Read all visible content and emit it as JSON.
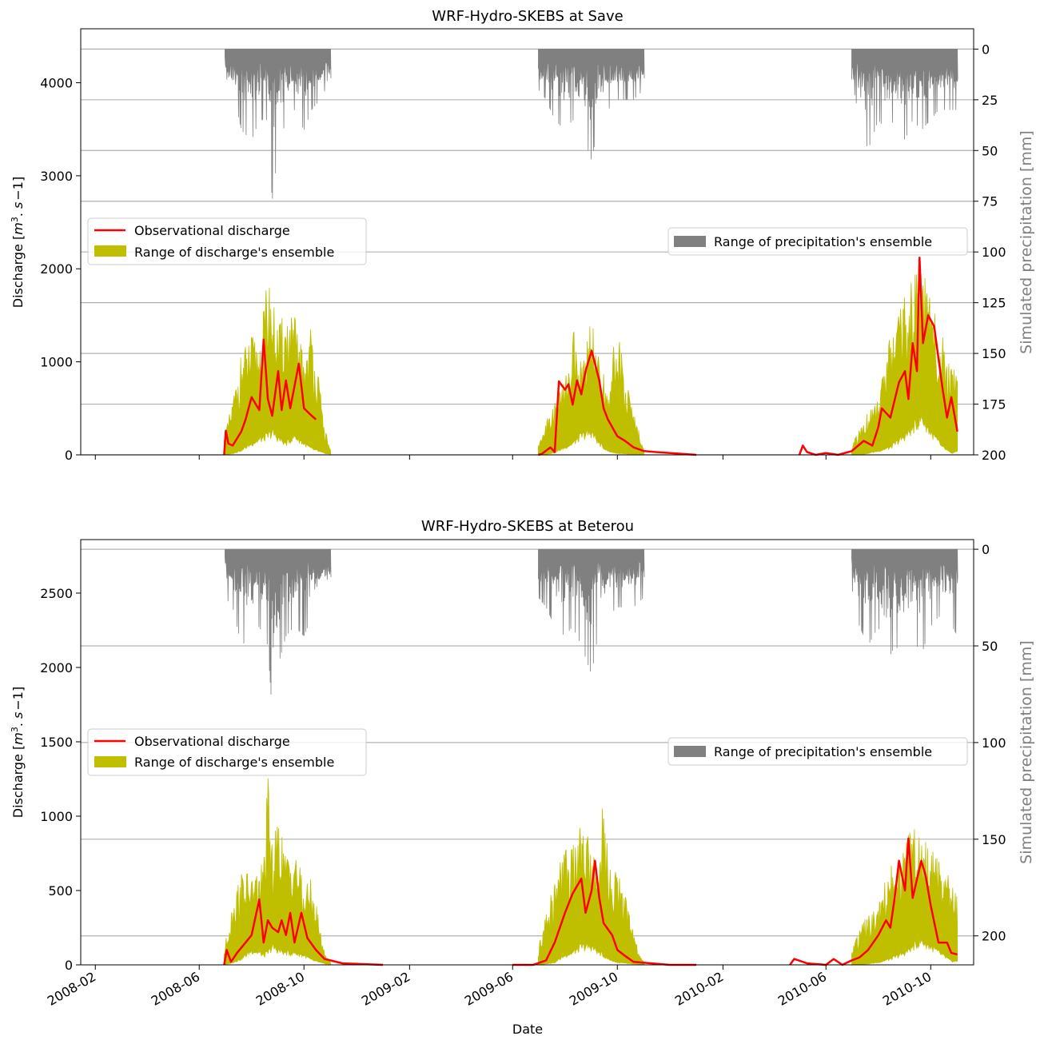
{
  "chart_data": [
    {
      "type": "line",
      "title": "WRF-Hydro-SKEBS at Save",
      "xlabel": "",
      "ylabel": "Discharge [$m^3.s^-1$]",
      "ylabel_parts": {
        "pre": "Discharge [",
        "m": "m",
        "sup": "3",
        "mid": ". ",
        "s": "s",
        "post": "−1]"
      },
      "y2label": "Simulated precipitation [mm]",
      "ylim": [
        0,
        4580
      ],
      "yticks": [
        "0",
        "1000",
        "2000",
        "3000",
        "4000"
      ],
      "y2lim": [
        200,
        -10
      ],
      "y2ticks": [
        "0",
        "25",
        "50",
        "75",
        "100",
        "125",
        "150",
        "175",
        "200"
      ],
      "xlim": [
        "2008-01-15",
        "2010-11-20"
      ],
      "xticks": [],
      "grid": "right-axis horizontal",
      "legend_left": [
        "Observational discharge",
        "Range of discharge's ensemble"
      ],
      "legend_right": [
        "Range of precipitation's ensemble"
      ],
      "series": [
        {
          "name": "Observational discharge",
          "color": "#ff0000",
          "x": [
            "2008-03-01",
            "2008-06-30",
            "2008-07-02",
            "2008-07-05",
            "2008-07-10",
            "2008-07-20",
            "2008-07-25",
            "2008-08-01",
            "2008-08-10",
            "2008-08-15",
            "2008-08-20",
            "2008-08-25",
            "2008-09-01",
            "2008-09-05",
            "2008-09-10",
            "2008-09-15",
            "2008-09-25",
            "2008-10-01",
            "2008-10-10",
            "2008-10-15",
            "2009-07-01",
            "2009-07-05",
            "2009-07-15",
            "2009-07-20",
            "2009-07-25",
            "2009-08-01",
            "2009-08-05",
            "2009-08-10",
            "2009-08-15",
            "2009-08-20",
            "2009-08-25",
            "2009-09-01",
            "2009-09-10",
            "2009-09-15",
            "2009-09-20",
            "2009-10-01",
            "2009-10-10",
            "2009-10-20",
            "2009-11-01",
            "2009-11-15",
            "2010-01-01",
            "2010-05-01",
            "2010-05-05",
            "2010-05-10",
            "2010-05-20",
            "2010-06-01",
            "2010-06-15",
            "2010-07-01",
            "2010-07-15",
            "2010-07-25",
            "2010-08-01",
            "2010-08-05",
            "2010-08-15",
            "2010-08-25",
            "2010-09-01",
            "2010-09-05",
            "2010-09-10",
            "2010-09-15",
            "2010-09-18",
            "2010-09-22",
            "2010-09-28",
            "2010-10-05",
            "2010-10-15",
            "2010-10-20",
            "2010-10-25",
            "2010-11-01"
          ],
          "y": [
            0,
            0,
            260,
            120,
            100,
            250,
            380,
            620,
            480,
            1240,
            600,
            420,
            900,
            480,
            800,
            500,
            980,
            500,
            420,
            380,
            0,
            10,
            80,
            30,
            790,
            700,
            760,
            540,
            800,
            650,
            900,
            1120,
            800,
            500,
            380,
            200,
            150,
            80,
            40,
            30,
            0,
            0,
            100,
            30,
            0,
            20,
            0,
            40,
            150,
            100,
            300,
            500,
            400,
            780,
            900,
            600,
            1200,
            900,
            2120,
            1200,
            1500,
            1380,
            700,
            400,
            620,
            250
          ]
        },
        {
          "name": "Range of discharge's ensemble",
          "color": "#bfbf00",
          "x": [
            "2008-06-30",
            "2008-07-10",
            "2008-07-20",
            "2008-08-01",
            "2008-08-10",
            "2008-08-20",
            "2008-08-25",
            "2008-09-01",
            "2008-09-10",
            "2008-09-20",
            "2008-10-01",
            "2008-10-10",
            "2008-10-20",
            "2008-10-25",
            "2008-11-01",
            "2009-07-01",
            "2009-07-10",
            "2009-07-20",
            "2009-08-01",
            "2009-08-10",
            "2009-08-20",
            "2009-09-01",
            "2009-09-10",
            "2009-09-20",
            "2009-10-01",
            "2009-10-15",
            "2009-10-25",
            "2009-11-01",
            "2010-07-01",
            "2010-07-15",
            "2010-08-01",
            "2010-08-15",
            "2010-09-01",
            "2010-09-10",
            "2010-09-20",
            "2010-10-01",
            "2010-10-15",
            "2010-10-25",
            "2010-11-01"
          ],
          "low": [
            0,
            20,
            60,
            150,
            200,
            250,
            300,
            220,
            150,
            250,
            150,
            80,
            40,
            20,
            10,
            0,
            10,
            30,
            100,
            150,
            250,
            300,
            150,
            50,
            20,
            10,
            10,
            10,
            0,
            10,
            50,
            100,
            250,
            350,
            500,
            300,
            100,
            20,
            50
          ],
          "high": [
            180,
            600,
            1100,
            1300,
            1200,
            1950,
            1700,
            1400,
            1550,
            1500,
            1100,
            1450,
            700,
            300,
            50,
            120,
            400,
            600,
            800,
            1400,
            1000,
            1500,
            1000,
            800,
            1400,
            700,
            300,
            50,
            100,
            400,
            600,
            1300,
            1700,
            1950,
            2100,
            1650,
            1300,
            1000,
            950
          ]
        },
        {
          "name": "Range of precipitation's ensemble",
          "color": "#808080",
          "axis": "right",
          "x": [
            "2008-07-01",
            "2008-07-10",
            "2008-07-20",
            "2008-08-01",
            "2008-08-10",
            "2008-08-20",
            "2008-08-25",
            "2008-09-01",
            "2008-09-10",
            "2008-09-20",
            "2008-10-01",
            "2008-10-10",
            "2008-10-20",
            "2008-11-01",
            "2009-07-01",
            "2009-07-10",
            "2009-07-20",
            "2009-08-01",
            "2009-08-10",
            "2009-08-20",
            "2009-09-01",
            "2009-09-10",
            "2009-09-20",
            "2009-10-01",
            "2009-10-10",
            "2009-10-20",
            "2009-11-01",
            "2010-07-01",
            "2010-07-10",
            "2010-07-20",
            "2010-08-01",
            "2010-08-10",
            "2010-08-20",
            "2010-09-01",
            "2010-09-10",
            "2010-09-20",
            "2010-10-01",
            "2010-10-10",
            "2010-10-20",
            "2010-11-01"
          ],
          "max": [
            15,
            20,
            40,
            45,
            35,
            35,
            75,
            50,
            35,
            30,
            40,
            30,
            25,
            15,
            20,
            25,
            35,
            40,
            35,
            40,
            55,
            35,
            30,
            25,
            25,
            25,
            20,
            15,
            35,
            50,
            35,
            40,
            35,
            45,
            35,
            40,
            35,
            30,
            30,
            30
          ]
        }
      ]
    },
    {
      "type": "line",
      "title": "WRF-Hydro-SKEBS at Beterou",
      "xlabel": "Date",
      "ylabel": "Discharge [$m^3.s^-1$]",
      "ylabel_parts": {
        "pre": "Discharge [",
        "m": "m",
        "sup": "3",
        "mid": ". ",
        "s": "s",
        "post": "−1]"
      },
      "y2label": "Simulated precipitation [mm]",
      "ylim": [
        0,
        2860
      ],
      "yticks": [
        "0",
        "500",
        "1000",
        "1500",
        "2000",
        "2500"
      ],
      "y2lim": [
        215,
        -5
      ],
      "y2ticks": [
        "0",
        "50",
        "100",
        "150",
        "200"
      ],
      "xlim": [
        "2008-01-15",
        "2010-11-20"
      ],
      "xticks": [
        "2008-02",
        "2008-06",
        "2008-10",
        "2009-02",
        "2009-06",
        "2009-10",
        "2010-02",
        "2010-06",
        "2010-10"
      ],
      "grid": "right-axis horizontal",
      "legend_left": [
        "Observational discharge",
        "Range of discharge's ensemble"
      ],
      "legend_right": [
        "Range of precipitation's ensemble"
      ],
      "series": [
        {
          "name": "Observational discharge",
          "color": "#ff0000",
          "x": [
            "2008-03-01",
            "2008-06-30",
            "2008-07-03",
            "2008-07-08",
            "2008-07-15",
            "2008-07-25",
            "2008-08-01",
            "2008-08-10",
            "2008-08-15",
            "2008-08-20",
            "2008-08-25",
            "2008-09-01",
            "2008-09-05",
            "2008-09-10",
            "2008-09-15",
            "2008-09-20",
            "2008-09-28",
            "2008-10-05",
            "2008-10-15",
            "2008-10-25",
            "2008-11-15",
            "2009-01-01",
            "2009-06-01",
            "2009-06-25",
            "2009-07-05",
            "2009-07-10",
            "2009-07-20",
            "2009-08-01",
            "2009-08-10",
            "2009-08-20",
            "2009-08-25",
            "2009-09-01",
            "2009-09-05",
            "2009-09-10",
            "2009-09-15",
            "2009-09-25",
            "2009-10-01",
            "2009-10-10",
            "2009-10-20",
            "2009-11-10",
            "2009-12-01",
            "2010-01-01",
            "2010-04-20",
            "2010-04-25",
            "2010-05-10",
            "2010-06-01",
            "2010-06-10",
            "2010-06-20",
            "2010-07-01",
            "2010-07-10",
            "2010-07-20",
            "2010-08-01",
            "2010-08-10",
            "2010-08-15",
            "2010-08-20",
            "2010-08-25",
            "2010-09-01",
            "2010-09-05",
            "2010-09-10",
            "2010-09-20",
            "2010-09-25",
            "2010-10-01",
            "2010-10-10",
            "2010-10-20",
            "2010-10-25",
            "2010-11-01"
          ],
          "y": [
            0,
            0,
            100,
            20,
            80,
            150,
            200,
            440,
            150,
            300,
            250,
            220,
            300,
            200,
            350,
            150,
            350,
            180,
            100,
            40,
            10,
            0,
            0,
            0,
            20,
            30,
            150,
            350,
            480,
            580,
            350,
            500,
            700,
            450,
            280,
            200,
            100,
            60,
            20,
            10,
            0,
            0,
            0,
            40,
            10,
            0,
            40,
            0,
            30,
            50,
            100,
            200,
            300,
            250,
            450,
            700,
            500,
            850,
            450,
            700,
            600,
            400,
            150,
            150,
            80,
            70
          ]
        },
        {
          "name": "Range of discharge's ensemble",
          "color": "#bfbf00",
          "x": [
            "2008-06-30",
            "2008-07-10",
            "2008-07-20",
            "2008-08-01",
            "2008-08-10",
            "2008-08-15",
            "2008-08-20",
            "2008-08-25",
            "2008-09-01",
            "2008-09-10",
            "2008-09-20",
            "2008-10-01",
            "2008-10-10",
            "2008-10-20",
            "2008-10-25",
            "2008-11-01",
            "2009-07-01",
            "2009-07-10",
            "2009-07-20",
            "2009-08-01",
            "2009-08-10",
            "2009-08-20",
            "2009-09-01",
            "2009-09-10",
            "2009-09-15",
            "2009-09-20",
            "2009-10-01",
            "2009-10-15",
            "2009-10-25",
            "2009-11-01",
            "2010-07-01",
            "2010-07-15",
            "2010-08-01",
            "2010-08-15",
            "2010-09-01",
            "2010-09-10",
            "2010-09-20",
            "2010-10-01",
            "2010-10-15",
            "2010-10-25",
            "2010-11-01"
          ],
          "low": [
            0,
            20,
            50,
            120,
            100,
            80,
            100,
            150,
            120,
            100,
            100,
            80,
            40,
            20,
            10,
            5,
            0,
            10,
            20,
            80,
            100,
            150,
            150,
            100,
            80,
            50,
            20,
            10,
            5,
            5,
            0,
            5,
            20,
            50,
            100,
            150,
            200,
            150,
            80,
            30,
            30
          ],
          "high": [
            100,
            450,
            650,
            600,
            650,
            720,
            1280,
            800,
            1000,
            750,
            850,
            520,
            600,
            250,
            80,
            20,
            120,
            350,
            600,
            800,
            800,
            950,
            850,
            600,
            1350,
            700,
            700,
            350,
            100,
            20,
            100,
            300,
            400,
            700,
            800,
            980,
            900,
            800,
            700,
            600,
            450
          ]
        },
        {
          "name": "Range of precipitation's ensemble",
          "color": "#808080",
          "axis": "right",
          "x": [
            "2008-07-01",
            "2008-07-10",
            "2008-07-20",
            "2008-08-01",
            "2008-08-10",
            "2008-08-20",
            "2008-08-25",
            "2008-09-01",
            "2008-09-10",
            "2008-09-20",
            "2008-10-01",
            "2008-10-10",
            "2008-10-20",
            "2008-11-01",
            "2009-07-01",
            "2009-07-10",
            "2009-07-20",
            "2009-08-01",
            "2009-08-10",
            "2009-08-20",
            "2009-09-01",
            "2009-09-10",
            "2009-09-20",
            "2009-10-01",
            "2009-10-10",
            "2009-10-20",
            "2009-11-01",
            "2010-07-01",
            "2010-07-10",
            "2010-07-20",
            "2010-08-01",
            "2010-08-10",
            "2010-08-20",
            "2010-09-01",
            "2010-09-10",
            "2010-09-20",
            "2010-10-01",
            "2010-10-10",
            "2010-10-20",
            "2010-11-01"
          ],
          "max": [
            25,
            30,
            50,
            45,
            40,
            50,
            85,
            60,
            45,
            40,
            45,
            35,
            30,
            20,
            25,
            30,
            40,
            45,
            40,
            50,
            65,
            40,
            35,
            30,
            30,
            30,
            25,
            20,
            40,
            50,
            40,
            60,
            50,
            55,
            45,
            55,
            40,
            35,
            35,
            45
          ]
        }
      ]
    }
  ]
}
